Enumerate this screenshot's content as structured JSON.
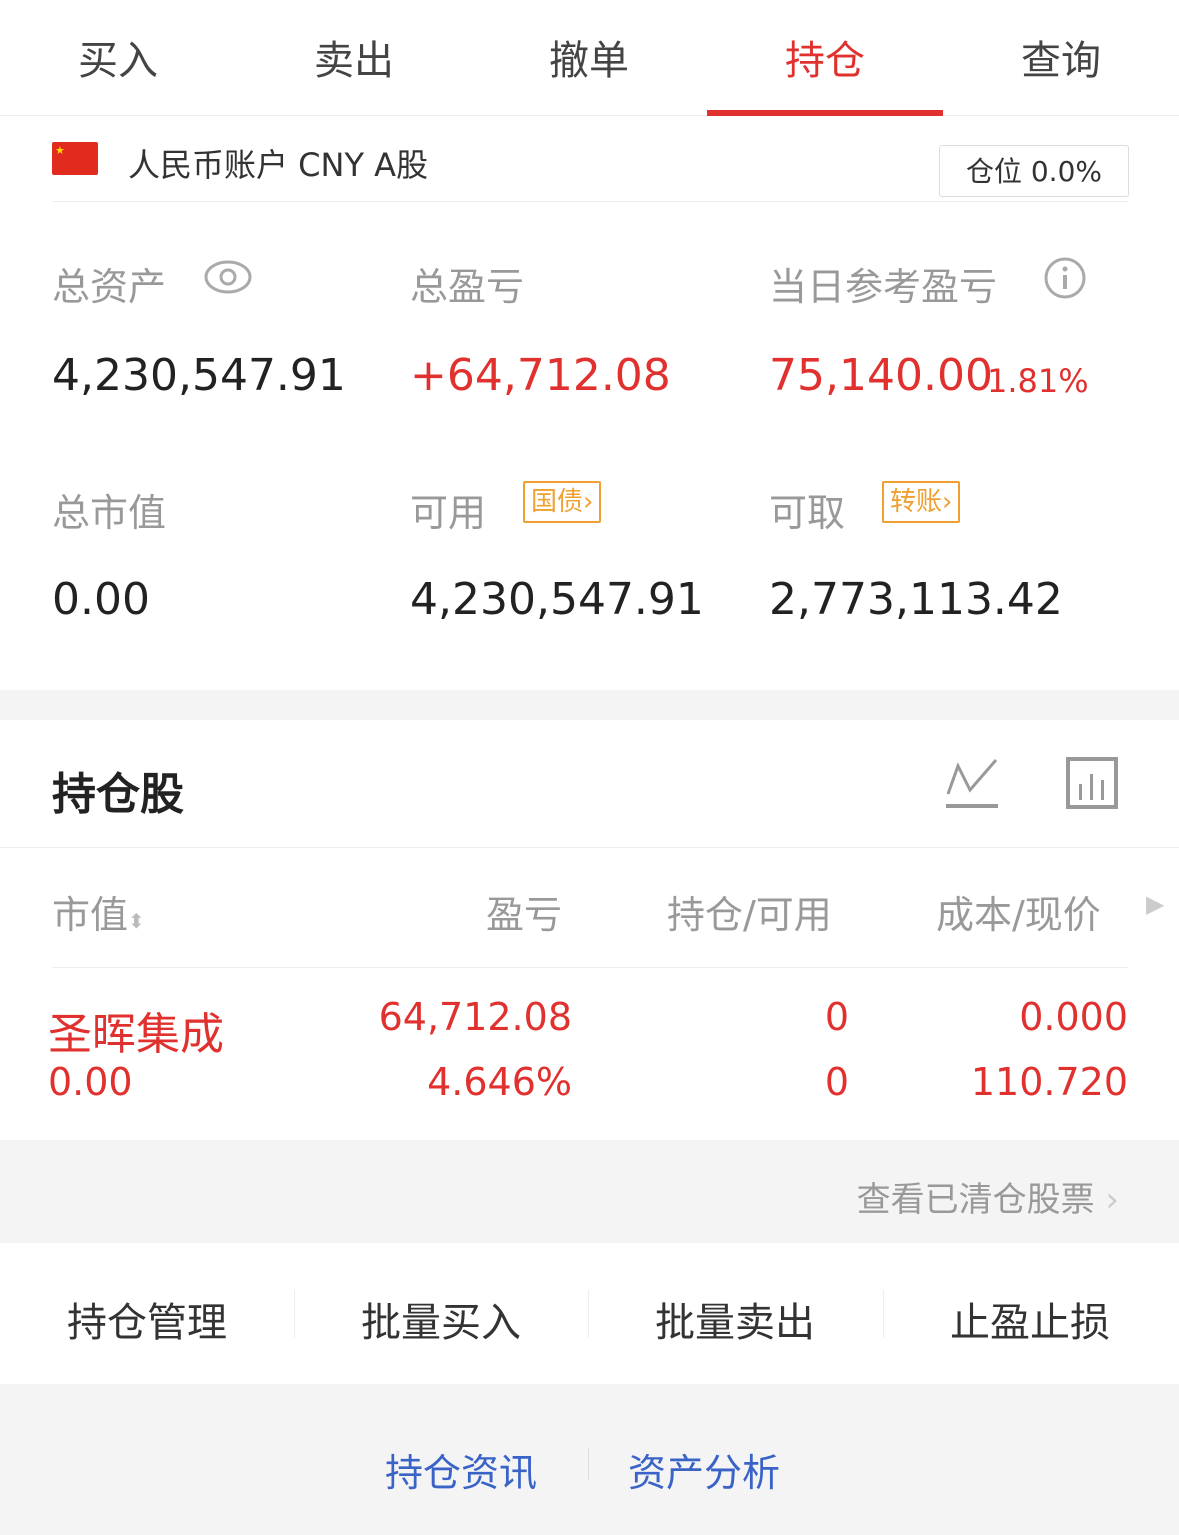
{
  "tabs": [
    "买入",
    "卖出",
    "撤单",
    "持仓",
    "查询"
  ],
  "active_tab": "持仓",
  "account": {
    "name": "人民币账户 CNY A股",
    "position_label": "仓位 0.0%"
  },
  "summary": {
    "total_assets_label": "总资产",
    "total_assets": "4,230,547.91",
    "total_pnl_label": "总盈亏",
    "total_pnl": "+64,712.08",
    "daily_pnl_label": "当日参考盈亏",
    "daily_pnl": "75,140.00",
    "daily_pnl_pct": "1.81%",
    "market_value_label": "总市值",
    "market_value": "0.00",
    "available_label": "可用",
    "available_tag": "国债",
    "available": "4,230,547.91",
    "withdrawable_label": "可取",
    "withdrawable_tag": "转账",
    "withdrawable": "2,773,113.42"
  },
  "holdings": {
    "title": "持仓股",
    "columns": [
      "市值",
      "盈亏",
      "持仓/可用",
      "成本/现价"
    ],
    "rows": [
      {
        "name": "圣晖集成",
        "market_value": "0.00",
        "pnl": "64,712.08",
        "pnl_pct": "4.646%",
        "position": "0",
        "available": "0",
        "cost": "0.000",
        "price": "110.720"
      }
    ]
  },
  "cleared_link": "查看已清仓股票",
  "actions": [
    "持仓管理",
    "批量买入",
    "批量卖出",
    "止盈止损"
  ],
  "footer_links": [
    "持仓资讯",
    "资产分析"
  ],
  "colors": {
    "accent": "#e0312f",
    "tag": "#f0a030",
    "link": "#3a63c8"
  }
}
